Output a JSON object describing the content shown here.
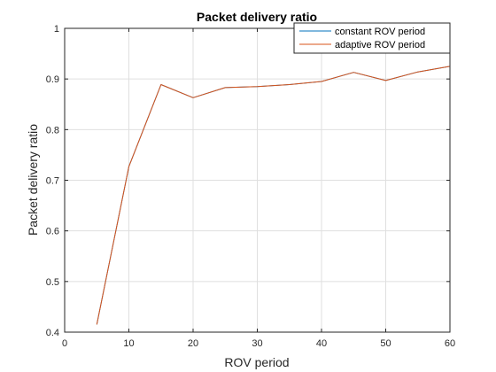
{
  "chart_data": {
    "type": "line",
    "title": "Packet delivery ratio",
    "xlabel": "ROV period",
    "ylabel": "Packet delivery ratio",
    "xlim": [
      0,
      60
    ],
    "ylim": [
      0.4,
      1
    ],
    "xticks": [
      0,
      10,
      20,
      30,
      40,
      50,
      60
    ],
    "xtick_labels": [
      "0",
      "10",
      "20",
      "30",
      "40",
      "50",
      "60"
    ],
    "yticks": [
      0.4,
      0.5,
      0.6,
      0.7,
      0.8,
      0.9,
      1
    ],
    "ytick_labels": [
      "0.4",
      "0.5",
      "0.6",
      "0.7",
      "0.8",
      "0.9",
      "1"
    ],
    "grid": true,
    "legend_position": "top-right",
    "x": [
      5,
      10,
      15,
      20,
      25,
      30,
      35,
      40,
      45,
      50,
      55,
      60
    ],
    "series": [
      {
        "name": "constant ROV period",
        "color": "#0072bd",
        "values": [
          0.415,
          0.727,
          0.889,
          0.863,
          0.883,
          0.885,
          0.889,
          0.895,
          0.913,
          0.897,
          0.914,
          0.925
        ]
      },
      {
        "name": "adaptive ROV period",
        "color": "#d95319",
        "values": [
          0.415,
          0.727,
          0.889,
          0.863,
          0.883,
          0.885,
          0.889,
          0.895,
          0.913,
          0.897,
          0.914,
          0.925
        ]
      }
    ]
  }
}
